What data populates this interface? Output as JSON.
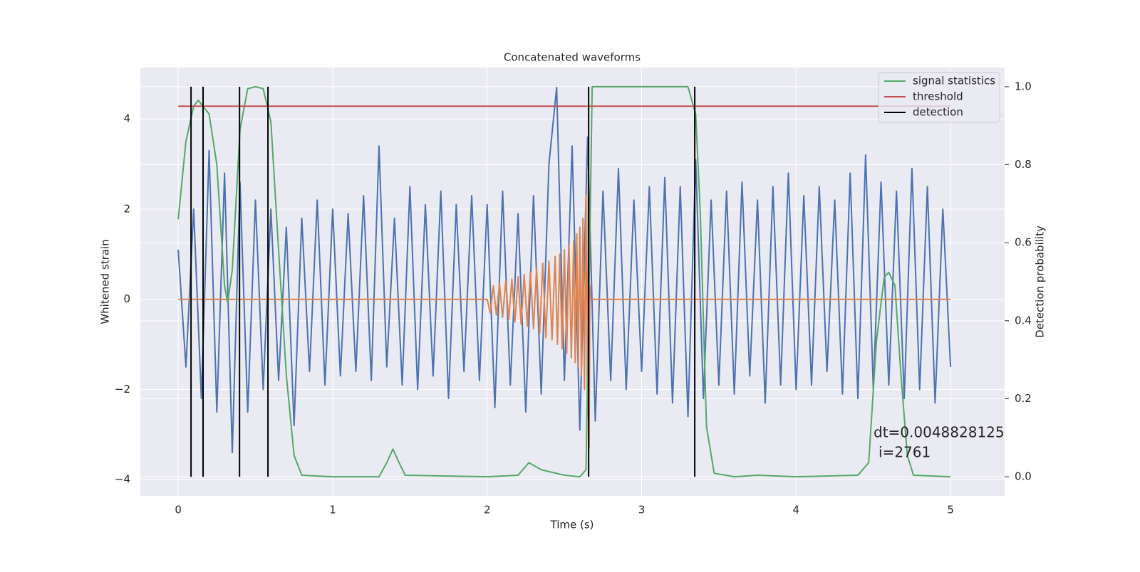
{
  "chart_data": {
    "type": "line",
    "title": "Concatenated waveforms",
    "xlabel": "Time (s)",
    "ylabel": "Whitened strain",
    "y2label": "Detection probability",
    "xlim": [
      -0.245,
      5.35
    ],
    "ylim": [
      -4.36,
      5.14
    ],
    "y2lim": [
      -0.049,
      1.049
    ],
    "xticks": [
      0,
      1,
      2,
      3,
      4,
      5
    ],
    "yticks": [
      {
        "value": -4,
        "label": "−4"
      },
      {
        "value": -2,
        "label": "−2"
      },
      0,
      2,
      4
    ],
    "y2ticks": [
      {
        "value": 0,
        "label": "0.0"
      },
      0.2,
      0.4,
      0.6,
      0.8,
      {
        "value": 1,
        "label": "1.0"
      }
    ],
    "grid": true,
    "legend": "upper right",
    "annotations": [
      "dt=0.0048828125",
      "i=2761"
    ],
    "series": [
      {
        "color": "#4c72b0",
        "x": [
          0,
          0.05,
          0.1,
          0.15,
          0.2,
          0.25,
          0.3,
          0.35,
          0.4,
          0.45,
          0.5,
          0.55,
          0.6,
          0.65,
          0.7,
          0.75,
          0.8,
          0.85,
          0.9,
          0.95,
          1.0,
          1.05,
          1.1,
          1.15,
          1.2,
          1.25,
          1.3,
          1.35,
          1.4,
          1.45,
          1.5,
          1.55,
          1.6,
          1.65,
          1.7,
          1.75,
          1.8,
          1.85,
          1.9,
          1.95,
          2.0,
          2.05,
          2.1,
          2.15,
          2.2,
          2.25,
          2.3,
          2.35,
          2.4,
          2.45,
          2.5,
          2.55,
          2.6,
          2.65,
          2.7,
          2.75,
          2.8,
          2.85,
          2.9,
          2.95,
          3.0,
          3.05,
          3.1,
          3.15,
          3.2,
          3.25,
          3.3,
          3.35,
          3.4,
          3.45,
          3.5,
          3.55,
          3.6,
          3.65,
          3.7,
          3.75,
          3.8,
          3.85,
          3.9,
          3.95,
          4.0,
          4.05,
          4.1,
          4.15,
          4.2,
          4.25,
          4.3,
          4.35,
          4.4,
          4.45,
          4.5,
          4.55,
          4.6,
          4.65,
          4.7,
          4.75,
          4.8,
          4.85,
          4.9,
          4.95,
          5.0
        ],
        "values": [
          1.1,
          -1.5,
          2.0,
          -2.2,
          3.3,
          -2.5,
          2.8,
          -3.4,
          2.6,
          -2.5,
          2.2,
          -2.0,
          2.0,
          -1.8,
          1.6,
          -2.8,
          1.8,
          -1.6,
          2.2,
          -1.9,
          2.0,
          -1.7,
          1.9,
          -1.6,
          2.3,
          -1.8,
          3.4,
          -1.5,
          1.8,
          -1.9,
          2.5,
          -2.0,
          2.1,
          -1.7,
          2.4,
          -2.2,
          2.1,
          -1.6,
          2.3,
          -1.8,
          2.1,
          -2.4,
          2.4,
          -1.9,
          1.9,
          -2.5,
          2.3,
          -2.1,
          3.0,
          4.7,
          -1.8,
          3.4,
          -2.9,
          3.6,
          -2.7,
          2.4,
          -1.8,
          2.9,
          -2.0,
          2.2,
          -1.6,
          2.5,
          -2.1,
          2.7,
          -2.3,
          2.5,
          -2.6,
          3.1,
          -2.2,
          2.2,
          -1.9,
          2.4,
          -2.1,
          2.6,
          -1.7,
          2.2,
          -2.3,
          2.5,
          -1.9,
          2.8,
          -2.0,
          2.3,
          -1.9,
          2.5,
          -1.6,
          2.2,
          -2.1,
          2.8,
          -2.2,
          3.2,
          -2.0,
          2.6,
          -1.9,
          2.4,
          -2.2,
          2.9,
          -2.0,
          2.5,
          -2.3,
          2.0,
          -1.5
        ]
      },
      {
        "color": "#dd8452",
        "x": [
          0,
          2.0,
          2.02,
          2.04,
          2.06,
          2.08,
          2.1,
          2.12,
          2.14,
          2.16,
          2.18,
          2.2,
          2.22,
          2.24,
          2.26,
          2.28,
          2.3,
          2.32,
          2.34,
          2.36,
          2.38,
          2.4,
          2.42,
          2.44,
          2.455,
          2.47,
          2.485,
          2.5,
          2.515,
          2.53,
          2.545,
          2.56,
          2.57,
          2.58,
          2.59,
          2.6,
          2.61,
          2.62,
          2.63,
          2.64,
          2.65,
          2.655,
          2.66,
          2.665,
          2.67,
          5.0
        ],
        "values": [
          0,
          0,
          -0.3,
          0.3,
          -0.35,
          0.35,
          -0.4,
          0.4,
          -0.45,
          0.45,
          -0.5,
          0.5,
          -0.55,
          0.55,
          -0.6,
          0.6,
          -0.65,
          0.7,
          -0.75,
          0.8,
          -0.85,
          0.85,
          -0.9,
          0.95,
          -1.0,
          1.0,
          -1.1,
          1.1,
          -1.2,
          1.2,
          -1.3,
          1.3,
          -1.4,
          1.45,
          -1.5,
          1.6,
          -1.7,
          1.8,
          -2.0,
          2.3,
          -2.6,
          2.8,
          -3.3,
          0.3,
          0,
          0
        ]
      },
      {
        "name": "signal statistics",
        "color": "#55a868",
        "axis": "y2",
        "x": [
          0,
          0.05,
          0.1,
          0.13,
          0.2,
          0.25,
          0.3,
          0.32,
          0.35,
          0.4,
          0.45,
          0.5,
          0.55,
          0.6,
          0.65,
          0.7,
          0.75,
          0.8,
          1.0,
          1.3,
          1.35,
          1.39,
          1.43,
          1.47,
          2.0,
          2.2,
          2.27,
          2.35,
          2.5,
          2.6,
          2.64,
          2.66,
          2.68,
          3.3,
          3.35,
          3.38,
          3.42,
          3.47,
          3.6,
          3.75,
          4.0,
          4.4,
          4.47,
          4.52,
          4.57,
          4.6,
          4.64,
          4.68,
          4.72,
          4.76,
          5.0
        ],
        "values": [
          0.66,
          0.86,
          0.95,
          0.965,
          0.93,
          0.8,
          0.49,
          0.447,
          0.53,
          0.89,
          0.995,
          1.0,
          0.995,
          0.91,
          0.58,
          0.26,
          0.055,
          0.004,
          0,
          0,
          0.036,
          0.071,
          0.036,
          0.004,
          0,
          0.004,
          0.036,
          0.018,
          0.004,
          0,
          0.018,
          0.49,
          1.0,
          1.0,
          0.93,
          0.675,
          0.128,
          0.009,
          0,
          0.004,
          0,
          0.004,
          0.036,
          0.347,
          0.511,
          0.524,
          0.49,
          0.255,
          0.055,
          0.004,
          0
        ]
      },
      {
        "name": "threshold",
        "color": "#c44e52",
        "axis": "y2",
        "x": [
          0,
          5
        ],
        "values": [
          0.95,
          0.95
        ]
      },
      {
        "name": "detection",
        "color": "#000000",
        "axis": "y2",
        "kind": "vlines",
        "x": [
          0.083,
          0.161,
          0.397,
          0.581,
          2.657,
          3.344
        ],
        "ymin": 0,
        "ymax": 1
      }
    ]
  }
}
